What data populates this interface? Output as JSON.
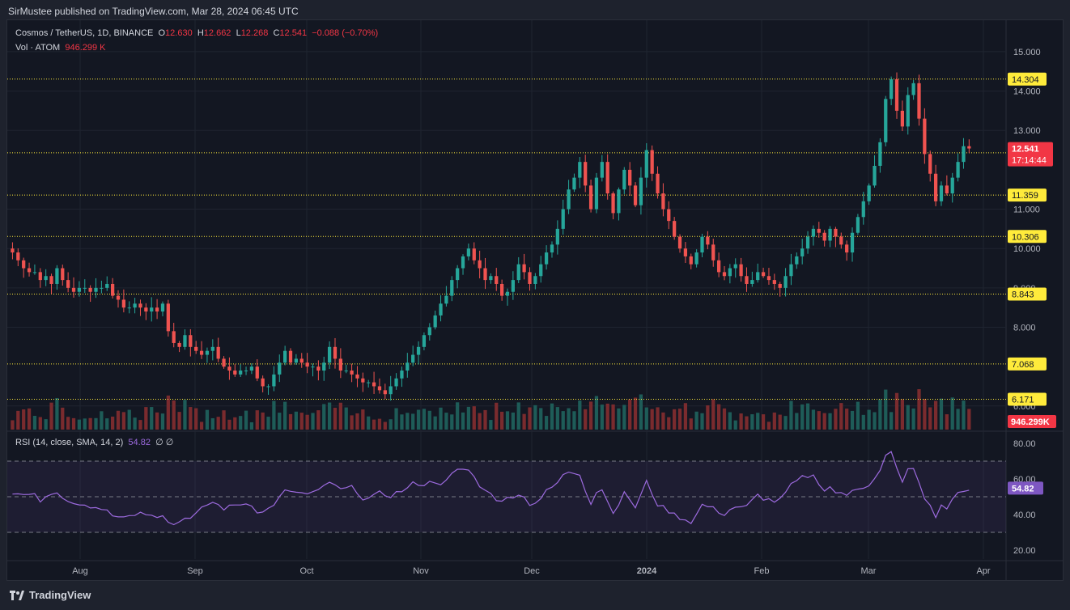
{
  "header": {
    "published": "SirMustee published on TradingView.com, Mar 28, 2024 06:45 UTC"
  },
  "legend": {
    "symbol": "Cosmos / TetherUS, 1D, BINANCE",
    "o_label": "O",
    "o": "12.630",
    "h_label": "H",
    "h": "12.662",
    "l_label": "L",
    "l": "12.268",
    "c_label": "C",
    "c": "12.541",
    "change": "−0.088 (−0.70%)",
    "vol_label": "Vol · ATOM",
    "vol": "946.299 K",
    "rsi_label": "RSI (14, close, SMA, 14, 2)",
    "rsi": "54.82",
    "rsi_extra": "∅ ∅"
  },
  "footer": {
    "brand": "TradingView"
  },
  "colors": {
    "up": "#26a69a",
    "down": "#ef5350",
    "level": "#ffeb3b",
    "rsi": "#9c6ade",
    "bg": "#131722"
  },
  "chart_data": {
    "type": "candlestick",
    "price_axis": {
      "ticks": [
        "15.000",
        "14.000",
        "13.000",
        "11.000",
        "10.000",
        "9.000",
        "8.000",
        "6.000"
      ],
      "range": [
        5.4,
        15.8
      ]
    },
    "levels": [
      "14.304",
      "12.432",
      "11.359",
      "10.306",
      "8.843",
      "7.068",
      "6.171"
    ],
    "current_price": "12.541",
    "countdown": "17:14:44",
    "volume_label": "946.299K",
    "time_ticks": [
      "Aug",
      "Sep",
      "Oct",
      "Nov",
      "Dec",
      "2024",
      "Feb",
      "Mar",
      "Apr"
    ],
    "rsi_axis": {
      "ticks": [
        "80.00",
        "60.00",
        "40.00",
        "20.00"
      ],
      "range": [
        15,
        85
      ],
      "bands": [
        70,
        50,
        30
      ]
    },
    "rsi_value": "54.82",
    "series": [
      {
        "name": "close",
        "values": [
          9.9,
          9.7,
          9.5,
          9.4,
          9.4,
          9.2,
          9.3,
          9.1,
          9.5,
          9.2,
          9.0,
          8.9,
          9.0,
          9.0,
          8.9,
          9.0,
          9.0,
          9.1,
          8.8,
          8.7,
          8.5,
          8.5,
          8.6,
          8.5,
          8.4,
          8.5,
          8.4,
          8.6,
          7.9,
          7.6,
          7.5,
          7.8,
          7.5,
          7.4,
          7.3,
          7.4,
          7.5,
          7.2,
          7.0,
          6.9,
          6.8,
          6.9,
          6.9,
          7.0,
          6.7,
          6.5,
          6.5,
          6.8,
          7.1,
          7.4,
          7.1,
          7.2,
          7.1,
          7.0,
          7.0,
          6.9,
          7.1,
          7.5,
          7.2,
          6.9,
          6.9,
          6.8,
          6.7,
          6.6,
          6.6,
          6.5,
          6.4,
          6.3,
          6.5,
          6.7,
          6.9,
          7.1,
          7.3,
          7.5,
          7.8,
          8.0,
          8.3,
          8.6,
          8.8,
          9.2,
          9.5,
          9.8,
          10.0,
          9.7,
          9.5,
          9.2,
          9.3,
          9.1,
          8.8,
          8.9,
          9.2,
          9.6,
          9.4,
          9.1,
          9.3,
          9.6,
          9.9,
          10.1,
          10.5,
          11.0,
          11.5,
          11.8,
          12.2,
          11.6,
          11.0,
          11.8,
          12.2,
          11.4,
          10.9,
          11.5,
          12.0,
          11.6,
          11.1,
          11.8,
          12.5,
          11.9,
          11.4,
          11.0,
          10.7,
          10.3,
          10.0,
          9.8,
          9.6,
          9.9,
          10.3,
          10.1,
          9.7,
          9.4,
          9.3,
          9.5,
          9.6,
          9.3,
          9.1,
          9.2,
          9.4,
          9.3,
          9.2,
          9.1,
          9.0,
          9.3,
          9.6,
          9.8,
          10.0,
          10.3,
          10.5,
          10.4,
          10.2,
          10.5,
          10.3,
          10.1,
          9.9,
          10.4,
          10.8,
          11.2,
          11.6,
          12.1,
          12.7,
          13.8,
          14.3,
          13.5,
          13.1,
          13.9,
          14.2,
          13.3,
          12.4,
          11.9,
          11.2,
          11.6,
          11.4,
          11.8,
          12.2,
          12.6,
          12.541
        ]
      }
    ]
  }
}
